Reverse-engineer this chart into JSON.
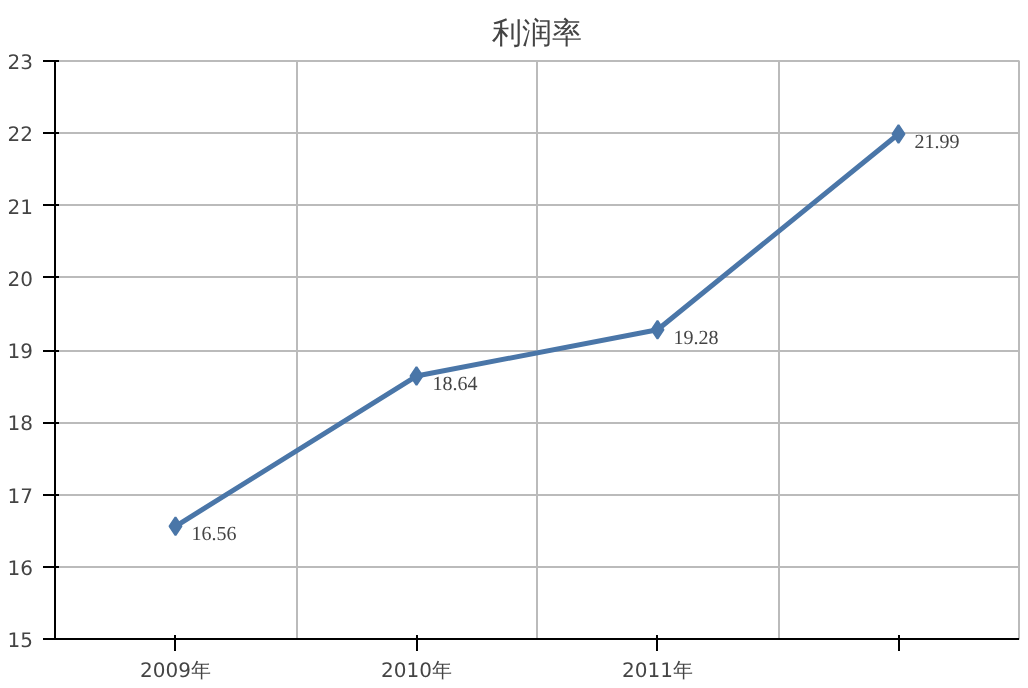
{
  "chart_data": {
    "type": "line",
    "title": "利润率",
    "categories": [
      "2009年",
      "2010年",
      "2011年",
      null
    ],
    "series": [
      {
        "color": "#4a76a8",
        "values": [
          16.56,
          18.64,
          19.28,
          21.99
        ]
      }
    ],
    "ylim": [
      15,
      23
    ],
    "yticks": [
      15,
      16,
      17,
      18,
      19,
      20,
      21,
      22,
      23
    ],
    "grid": true,
    "marker": "diamond",
    "line_style": "solid",
    "data_labels": true
  }
}
